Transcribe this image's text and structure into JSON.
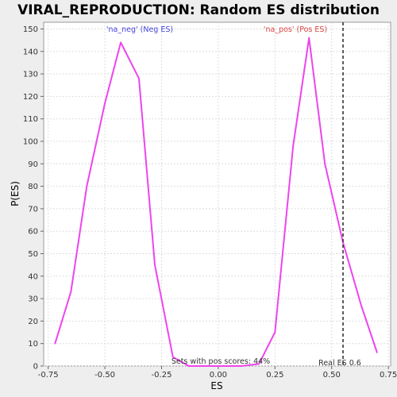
{
  "chart_data": {
    "type": "line",
    "title": "VIRAL_REPRODUCTION: Random ES distribution",
    "xlabel": "ES",
    "ylabel": "P(ES)",
    "xlim": [
      -0.77,
      0.76
    ],
    "ylim": [
      0,
      153
    ],
    "xticks": [
      -0.75,
      -0.5,
      -0.25,
      0.0,
      0.25,
      0.5,
      0.75
    ],
    "xtick_labels": [
      "-0.75",
      "-0.50",
      "-0.25",
      "0.00",
      "0.25",
      "0.50",
      "0.75"
    ],
    "yticks": [
      0,
      10,
      20,
      30,
      40,
      50,
      60,
      70,
      80,
      90,
      100,
      110,
      120,
      130,
      140,
      150
    ],
    "grid": true,
    "series": [
      {
        "color": "#ee44ee",
        "x": [
          -0.72,
          -0.65,
          -0.58,
          -0.5,
          -0.43,
          -0.35,
          -0.28,
          -0.2,
          -0.13,
          -0.05,
          0.03,
          0.1,
          0.18,
          0.25,
          0.33,
          0.4,
          0.47,
          0.55,
          0.63,
          0.7
        ],
        "y": [
          10,
          33,
          80,
          117,
          144,
          128,
          45,
          4,
          0,
          0,
          0,
          0,
          1,
          15,
          98,
          146,
          90,
          55,
          27,
          6
        ]
      }
    ],
    "annotations": {
      "neg_label": "'na_neg' (Neg ES)",
      "neg_color": "#4444dd",
      "pos_label": "'na_pos' (Pos ES)",
      "pos_color": "#dd4444",
      "pos_scores": "Sets with pos scores: 44%",
      "real_es_label": "Real ES 0.6",
      "real_es_value": 0.55
    }
  }
}
